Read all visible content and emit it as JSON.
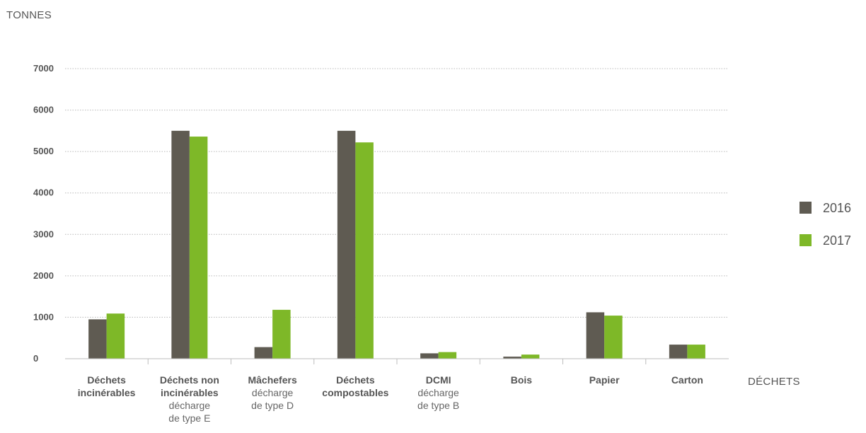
{
  "chart_data": {
    "type": "bar",
    "ylabel": "TONNES",
    "xlabel": "DÉCHETS",
    "ylim": [
      0,
      7000
    ],
    "yticks": [
      "0",
      "1000",
      "2000",
      "3000",
      "4000",
      "5000",
      "6000",
      "7000"
    ],
    "grid": true,
    "legend_position": "right",
    "categories": [
      {
        "name": "Déchets incinérables",
        "lines": [
          "Déchets",
          "incinérables"
        ],
        "sub": []
      },
      {
        "name": "Déchets non incinérables",
        "lines": [
          "Déchets non",
          "incinérables"
        ],
        "sub": [
          "décharge",
          "de type E"
        ]
      },
      {
        "name": "Mâchefers",
        "lines": [
          "Mâchefers"
        ],
        "sub": [
          "décharge",
          "de type D"
        ]
      },
      {
        "name": "Déchets compostables",
        "lines": [
          "Déchets",
          "compostables"
        ],
        "sub": []
      },
      {
        "name": "DCMI",
        "lines": [
          "DCMI"
        ],
        "sub": [
          "décharge",
          "de type B"
        ]
      },
      {
        "name": "Bois",
        "lines": [
          "Bois"
        ],
        "sub": []
      },
      {
        "name": "Papier",
        "lines": [
          "Papier"
        ],
        "sub": []
      },
      {
        "name": "Carton",
        "lines": [
          "Carton"
        ],
        "sub": []
      }
    ],
    "series": [
      {
        "name": "2016",
        "color": "#5f5b52",
        "values": [
          950,
          5500,
          280,
          5500,
          130,
          50,
          1120,
          340
        ]
      },
      {
        "name": "2017",
        "color": "#7eb828",
        "values": [
          1090,
          5360,
          1180,
          5220,
          160,
          100,
          1040,
          340
        ]
      }
    ]
  }
}
